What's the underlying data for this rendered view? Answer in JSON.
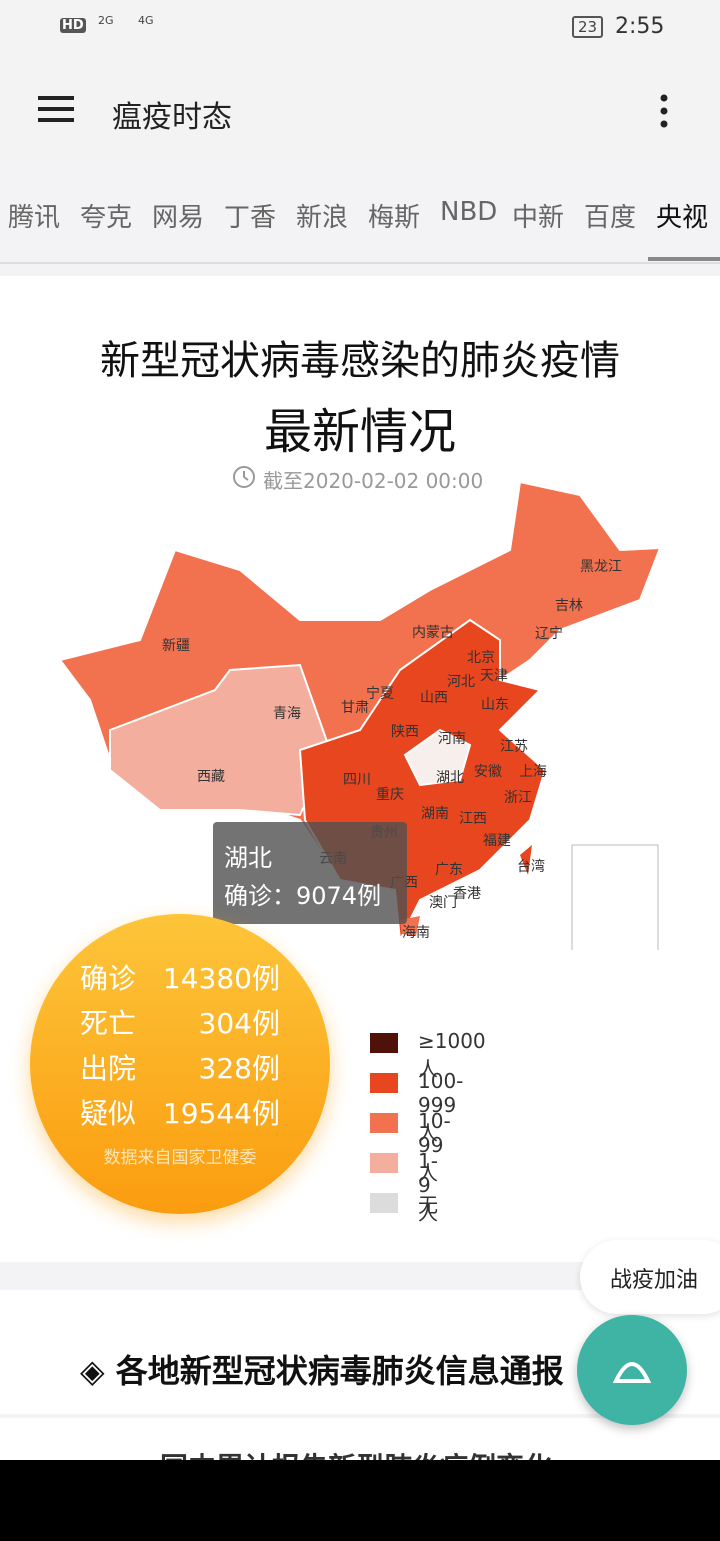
{
  "status_bar": {
    "network": "HD",
    "signal_1": "2G",
    "signal_2": "4G",
    "battery": "23",
    "time": "2:55"
  },
  "app_bar": {
    "title": "瘟疫时态"
  },
  "tabs": [
    "腾讯",
    "夸克",
    "网易",
    "丁香",
    "新浪",
    "梅斯",
    "NBD",
    "中新",
    "百度",
    "央视"
  ],
  "card": {
    "title_line_1": "新型冠状病毒感染的肺炎疫情",
    "title_line_2": "最新情况",
    "timestamp": "截至2020-02-02 00:00",
    "provinces": [
      "黑龙江",
      "吉林",
      "辽宁",
      "内蒙古",
      "北京",
      "天津",
      "河北",
      "山西",
      "宁夏",
      "甘肃",
      "山东",
      "新疆",
      "青海",
      "西藏",
      "陕西",
      "河南",
      "江苏",
      "安徽",
      "上海",
      "湖北",
      "四川",
      "重庆",
      "浙江",
      "湖南",
      "江西",
      "贵州",
      "福建",
      "云南",
      "台湾",
      "广东",
      "广西",
      "香港",
      "澳门",
      "海南"
    ],
    "tooltip": {
      "name": "湖北",
      "text": "确诊：9074例"
    },
    "stats": [
      {
        "label": "确诊",
        "value": "14380例"
      },
      {
        "label": "死亡",
        "value": "304例"
      },
      {
        "label": "出院",
        "value": "328例"
      },
      {
        "label": "疑似",
        "value": "19544例"
      }
    ],
    "source": "数据来自国家卫健委",
    "legend": [
      {
        "label": "≥1000人",
        "color": "#4e1208"
      },
      {
        "label": "100-999人",
        "color": "#e8461f"
      },
      {
        "label": "10-99人",
        "color": "#f2714f"
      },
      {
        "label": "1-9人",
        "color": "#f3ae9e"
      },
      {
        "label": "无",
        "color": "#dcdcdc"
      }
    ]
  },
  "chip": "战疫加油",
  "section": {
    "heading": "各地新型冠状病毒肺炎信息通报",
    "next": "国内累计报告新型肺炎病例变化"
  }
}
